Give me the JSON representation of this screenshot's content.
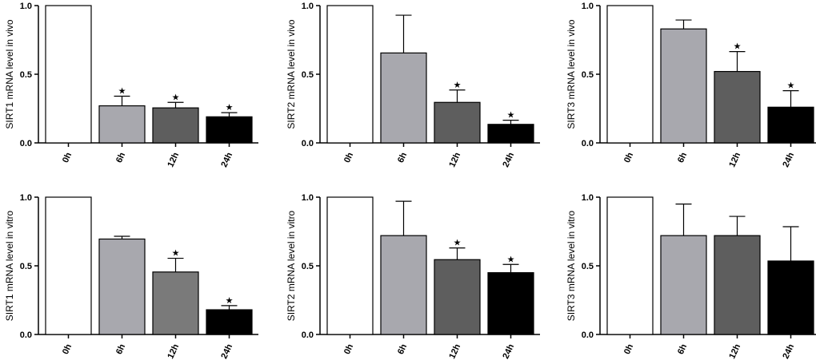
{
  "colors": [
    "#ffffff",
    "#a8a8ae",
    "#5e5e5e",
    "#000000"
  ],
  "significance_marker": "★",
  "chart_data": [
    {
      "type": "bar",
      "categories": [
        "0h",
        "6h",
        "12h",
        "24h"
      ],
      "ylabel": "SIRT1 mRNA level in vivo",
      "yticks": [
        "0.0",
        "0.5",
        "1.0"
      ],
      "ylim": [
        0,
        1.0
      ],
      "values": [
        1.0,
        0.27,
        0.255,
        0.19
      ],
      "errors": [
        0,
        0.07,
        0.04,
        0.03
      ],
      "significant": [
        false,
        true,
        true,
        true
      ],
      "bar_colors": [
        "#ffffff",
        "#a8a8ae",
        "#5e5e5e",
        "#000000"
      ]
    },
    {
      "type": "bar",
      "categories": [
        "0h",
        "6h",
        "12h",
        "24h"
      ],
      "ylabel": "SIRT2 mRNA level in vivo",
      "yticks": [
        "0.0",
        "0.5",
        "1.0"
      ],
      "ylim": [
        0,
        1.0
      ],
      "values": [
        1.0,
        0.655,
        0.295,
        0.135
      ],
      "errors": [
        0,
        0.275,
        0.09,
        0.03
      ],
      "significant": [
        false,
        false,
        true,
        true
      ],
      "bar_colors": [
        "#ffffff",
        "#a8a8ae",
        "#5e5e5e",
        "#000000"
      ]
    },
    {
      "type": "bar",
      "categories": [
        "0h",
        "6h",
        "12h",
        "24h"
      ],
      "ylabel": "SIRT3 mRNA level in vivo",
      "yticks": [
        "0.0",
        "0.5",
        "1.0"
      ],
      "ylim": [
        0,
        1.0
      ],
      "values": [
        1.0,
        0.83,
        0.52,
        0.26
      ],
      "errors": [
        0,
        0.065,
        0.145,
        0.12
      ],
      "significant": [
        false,
        false,
        true,
        true
      ],
      "bar_colors": [
        "#ffffff",
        "#a8a8ae",
        "#5e5e5e",
        "#000000"
      ]
    },
    {
      "type": "bar",
      "categories": [
        "0h",
        "6h",
        "12h",
        "24h"
      ],
      "ylabel": "SIRT1 mRNA level in vitro",
      "yticks": [
        "0.0",
        "0.5",
        "1.0"
      ],
      "ylim": [
        0,
        1.0
      ],
      "values": [
        1.0,
        0.695,
        0.455,
        0.18
      ],
      "errors": [
        0,
        0.02,
        0.1,
        0.03
      ],
      "significant": [
        false,
        false,
        true,
        true
      ],
      "bar_colors": [
        "#ffffff",
        "#a8a8ae",
        "#7a7a7a",
        "#000000"
      ]
    },
    {
      "type": "bar",
      "categories": [
        "0h",
        "6h",
        "12h",
        "24h"
      ],
      "ylabel": "SIRT2 mRNA level in vitro",
      "yticks": [
        "0.0",
        "0.5",
        "1.0"
      ],
      "ylim": [
        0,
        1.0
      ],
      "values": [
        1.0,
        0.72,
        0.545,
        0.45
      ],
      "errors": [
        0,
        0.25,
        0.085,
        0.06
      ],
      "significant": [
        false,
        false,
        true,
        true
      ],
      "bar_colors": [
        "#ffffff",
        "#a8a8ae",
        "#5e5e5e",
        "#000000"
      ]
    },
    {
      "type": "bar",
      "categories": [
        "0h",
        "6h",
        "12h",
        "24h"
      ],
      "ylabel": "SIRT3 mRNA level in vitro",
      "yticks": [
        "0.0",
        "0.5",
        "1.0"
      ],
      "ylim": [
        0,
        1.0
      ],
      "values": [
        1.0,
        0.72,
        0.72,
        0.535
      ],
      "errors": [
        0,
        0.23,
        0.14,
        0.25
      ],
      "significant": [
        false,
        false,
        false,
        false
      ],
      "bar_colors": [
        "#ffffff",
        "#a8a8ae",
        "#5e5e5e",
        "#000000"
      ]
    }
  ]
}
